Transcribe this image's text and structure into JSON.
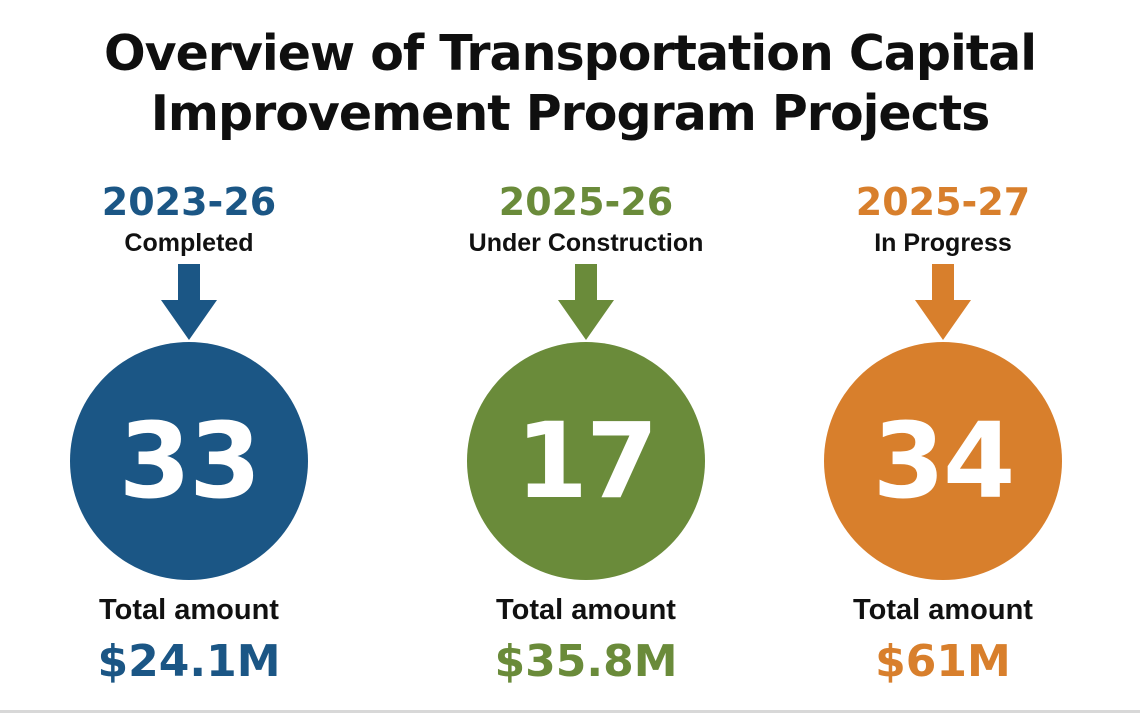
{
  "title": {
    "line1": "Overview of Transportation Capital",
    "line2": "Improvement Program Projects"
  },
  "colors": {
    "blue": "#1b5685",
    "green": "#6a8b3a",
    "orange": "#d87f2c"
  },
  "columns": [
    {
      "years": "2023-26",
      "status": "Completed",
      "count": "33",
      "total_label": "Total amount",
      "amount": "$24.1M",
      "color": "#1b5685",
      "icon": "arrow-down-icon"
    },
    {
      "years": "2025-26",
      "status": "Under Construction",
      "count": "17",
      "total_label": "Total amount",
      "amount": "$35.8M",
      "color": "#6a8b3a",
      "icon": "arrow-down-icon"
    },
    {
      "years": "2025-27",
      "status": "In Progress",
      "count": "34",
      "total_label": "Total amount",
      "amount": "$61M",
      "color": "#d87f2c",
      "icon": "arrow-down-icon"
    }
  ]
}
